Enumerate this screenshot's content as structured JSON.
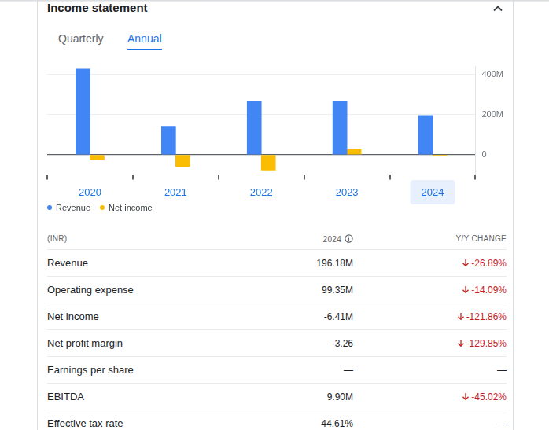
{
  "header": {
    "title": "Income statement"
  },
  "tabs": [
    {
      "label": "Quarterly"
    },
    {
      "label": "Annual",
      "selected": true
    }
  ],
  "chart_data": {
    "type": "bar",
    "categories": [
      "2020",
      "2021",
      "2022",
      "2023",
      "2024"
    ],
    "series": [
      {
        "name": "Revenue",
        "color": "#4285f4",
        "values": [
          427,
          142,
          269,
          268.3,
          196.18
        ]
      },
      {
        "name": "Net income",
        "color": "#fbbc04",
        "values": [
          -27,
          -58,
          -77,
          29.3,
          -6.41
        ]
      }
    ],
    "ylim": [
      -100,
      440
    ],
    "yticks": [
      0,
      {
        "value": 200,
        "label": "200M"
      },
      {
        "value": 400,
        "label": "400M"
      }
    ],
    "grid": true,
    "legend": "bottom"
  },
  "table": {
    "columns": [
      "(INR)",
      "2024",
      "Y/Y CHANGE"
    ],
    "rows": [
      [
        "Revenue",
        "196.18M",
        "-26.89%"
      ],
      [
        "Operating expense",
        "99.35M",
        "-14.09%"
      ],
      [
        "Net income",
        "-6.41M",
        "-121.86%"
      ],
      [
        "Net profit margin",
        "-3.26",
        "-129.85%"
      ],
      [
        "Earnings per share",
        "—",
        "—"
      ],
      [
        "EBITDA",
        "9.90M",
        "-45.02%"
      ],
      [
        "Effective tax rate",
        "44.61%",
        "—"
      ]
    ]
  }
}
